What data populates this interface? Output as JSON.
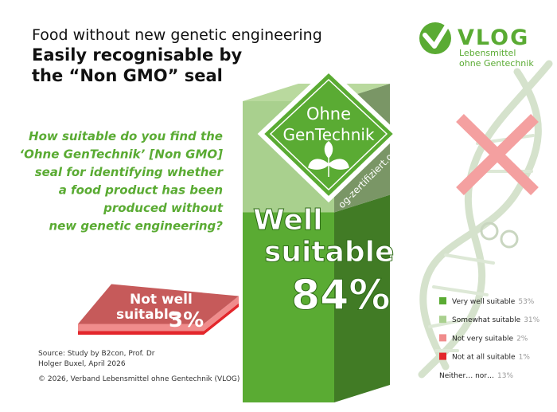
{
  "header": {
    "title": "Food without new genetic engineering",
    "subtitle": [
      "Easily recognisable by",
      "the “Non GMO” seal"
    ]
  },
  "logo": {
    "name": "VLOG",
    "lines": [
      "Lebensmittel",
      "ohne Gentechnik"
    ]
  },
  "chart_data": {
    "type": "stacked-block",
    "question": [
      "How suitable  do you find the",
      "‘Ohne GenTechnik’ [Non GMO]",
      "seal for identifying whether",
      "a food product has been",
      "produced without",
      "new genetic engineering?"
    ],
    "categories": [
      "Very well suitable",
      "Somewhat suitable",
      "Not very suitable",
      "Not at all suitable",
      "Neither… nor…"
    ],
    "values": [
      53,
      31,
      2,
      1,
      13
    ],
    "value_labels": [
      "53%",
      "31%",
      "2%",
      "1%",
      "13%"
    ],
    "colors": [
      "#5aab33",
      "#a9d08e",
      "#f08c8c",
      "#e3262b"
    ],
    "groups": [
      {
        "label": [
          "Well",
          "suitable"
        ],
        "value": 84,
        "value_label": "84%"
      },
      {
        "label": [
          "Not well",
          "suitable"
        ],
        "value": 3,
        "value_label": "3%"
      }
    ]
  },
  "seal": {
    "lines": [
      "Ohne",
      "GenTechnik"
    ],
    "url": "og-zertifiziert.org"
  },
  "source": [
    "Source: Study by B2con, Prof. Dr",
    "Holger Buxel, April 2026"
  ],
  "copyright": "© 2026, Verband  Lebensmittel  ohne Gentechnik  (VLOG)"
}
